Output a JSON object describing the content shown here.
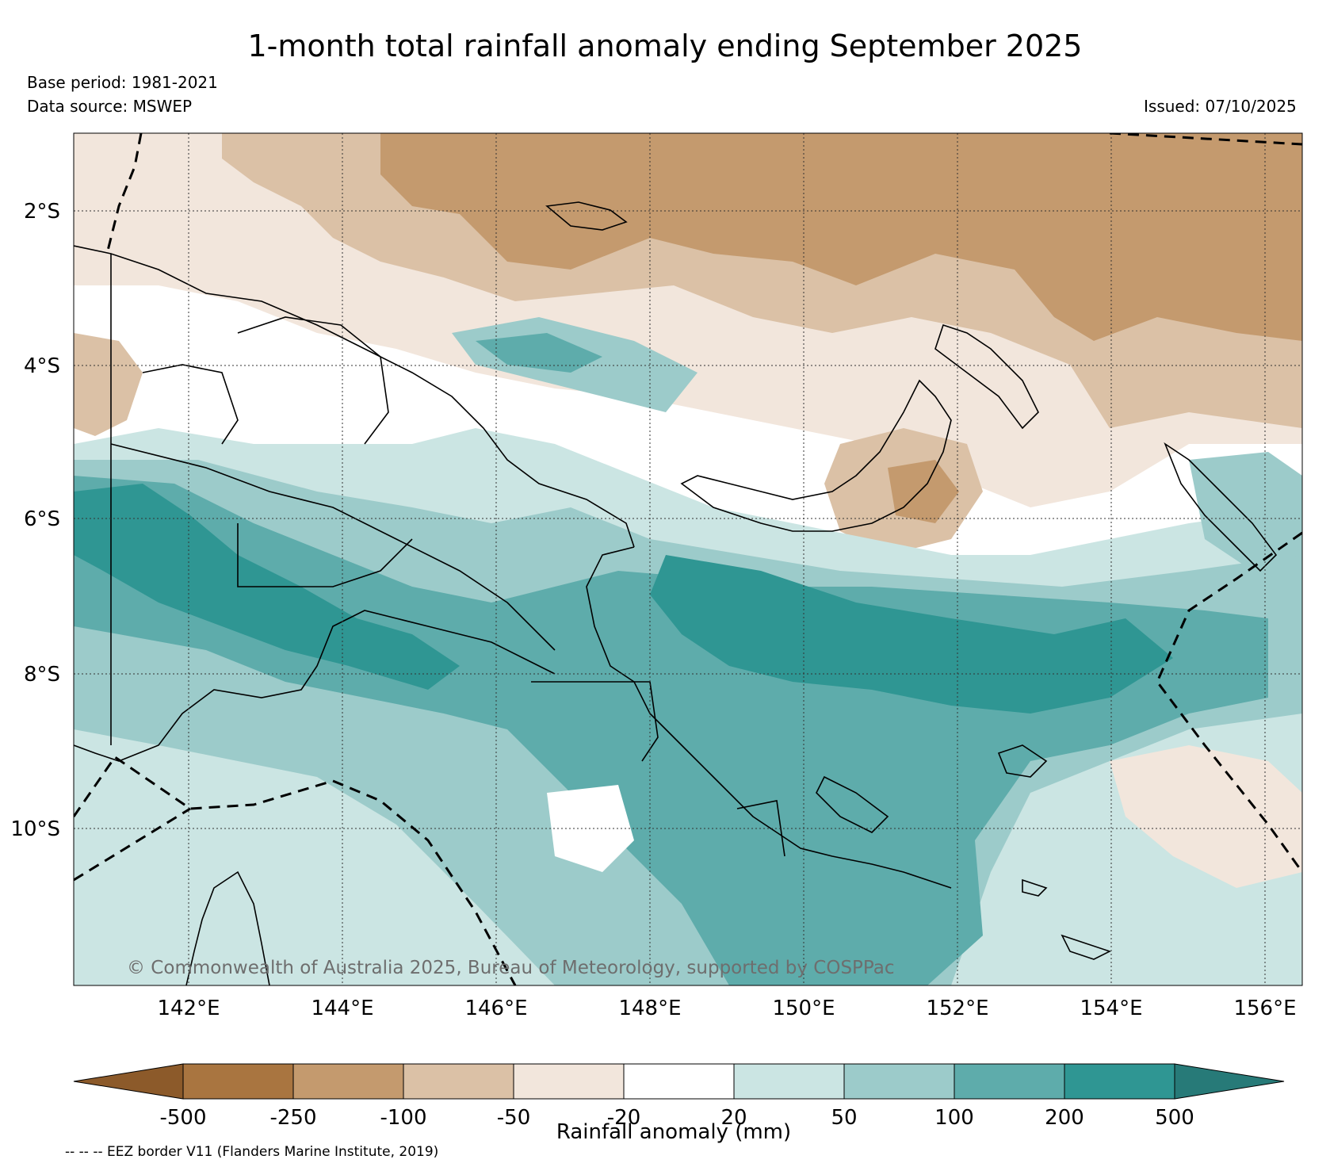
{
  "title": "1-month total rainfall anomaly ending September 2025",
  "base_period": "Base period: 1981-2021",
  "data_source": "Data source: MSWEP",
  "issued": "Issued: 07/10/2025",
  "copyright": "© Commonwealth of Australia 2025, Bureau of Meteorology, supported by COSPPac",
  "footer_note": "-- -- -- EEZ border V11 (Flanders Marine Institute, 2019)",
  "map": {
    "lat_ticks": [
      "2°S",
      "4°S",
      "6°S",
      "8°S",
      "10°S"
    ],
    "lon_ticks": [
      "142°E",
      "144°E",
      "146°E",
      "148°E",
      "150°E",
      "152°E",
      "154°E",
      "156°E"
    ]
  },
  "colorbar": {
    "label": "Rainfall anomaly (mm)",
    "tick_labels": [
      "-500",
      "-250",
      "-100",
      "-50",
      "-20",
      "20",
      "50",
      "100",
      "200",
      "500"
    ],
    "colors": [
      "#8c5a2a",
      "#a97540",
      "#c49a6e",
      "#dbc1a6",
      "#f2e6dc",
      "#ffffff",
      "#cbe5e3",
      "#9ccbca",
      "#5eacab",
      "#2f9693",
      "#277a78"
    ]
  }
}
